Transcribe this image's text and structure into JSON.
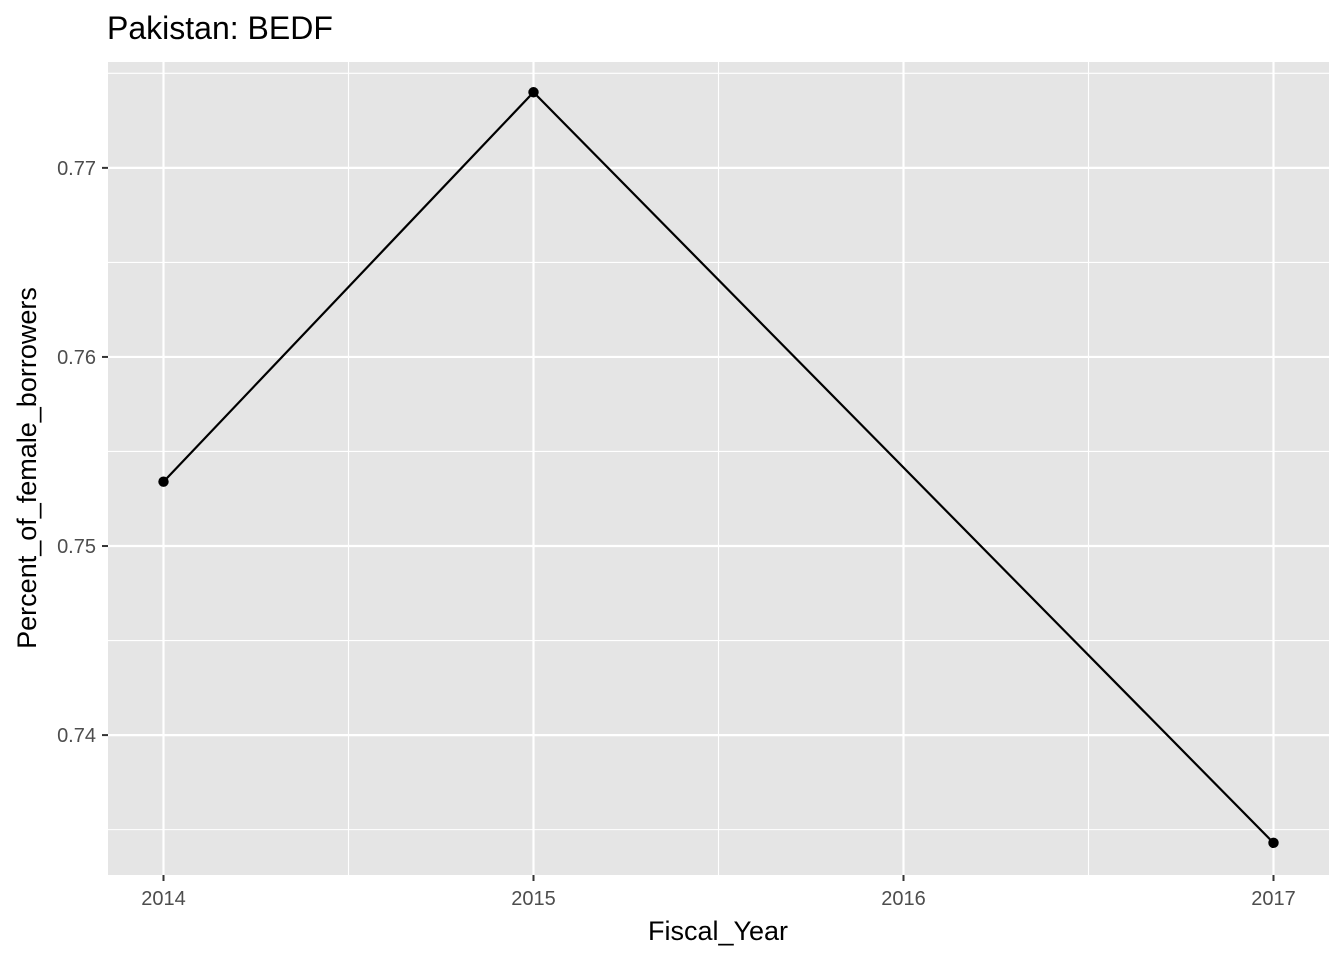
{
  "chart_data": {
    "type": "line",
    "title": "Pakistan:  BEDF",
    "xlabel": "Fiscal_Year",
    "ylabel": "Percent_of_female_borrowers",
    "x": [
      2014,
      2015,
      2016,
      2017
    ],
    "x_tick_labels": [
      "2014",
      "2015",
      "2016",
      "2017"
    ],
    "y_tick_values": [
      0.74,
      0.75,
      0.76,
      0.77
    ],
    "y_tick_labels": [
      "0.74",
      "0.75",
      "0.76",
      "0.77"
    ],
    "series": [
      {
        "x": [
          2014,
          2015,
          2017
        ],
        "values": [
          0.7534,
          0.774,
          0.7343
        ]
      }
    ],
    "xlim": [
      2013.85,
      2017.15
    ],
    "ylim": [
      0.7326,
      0.7756
    ],
    "grid": true,
    "legend": "none",
    "colors": {
      "panel_background": "#e5e5e5",
      "grid": "#ffffff",
      "line": "#000000",
      "point": "#000000"
    }
  }
}
